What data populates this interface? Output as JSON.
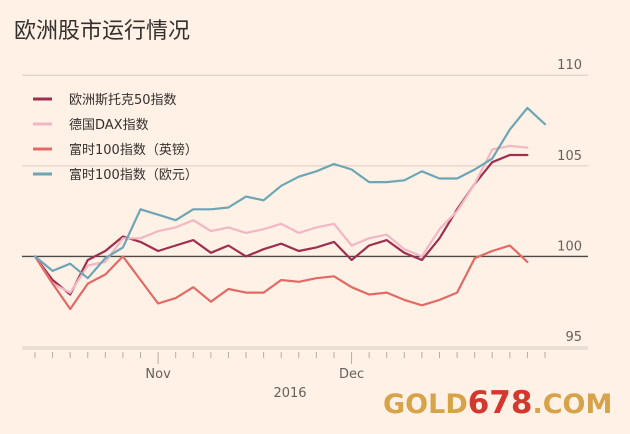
{
  "chart_data": {
    "type": "line",
    "title": "欧洲股市运行情况",
    "xlabel": "",
    "ylabel": "",
    "ylim": [
      95,
      111
    ],
    "yticks": [
      95,
      100,
      105,
      110
    ],
    "xticks": [
      {
        "label": "Nov",
        "x": 7
      },
      {
        "label": "Dec",
        "x": 18
      }
    ],
    "year_label": "2016",
    "grid": true,
    "legend_position": "top-left",
    "series": [
      {
        "name": "欧洲斯托克50指数",
        "color": "#9e2f50",
        "values": [
          100,
          98.7,
          97.9,
          99.8,
          100.3,
          101.1,
          100.8,
          100.3,
          100.6,
          100.9,
          100.2,
          100.6,
          100,
          100.4,
          100.7,
          100.3,
          100.5,
          100.8,
          99.8,
          100.6,
          100.9,
          100.2,
          99.8,
          101,
          102.6,
          104,
          105.2,
          105.6,
          105.6
        ]
      },
      {
        "name": "德国DAX指数",
        "color": "#f2b7c4",
        "values": [
          100,
          98.5,
          98,
          99.5,
          99.7,
          101,
          101,
          101.4,
          101.6,
          102,
          101.4,
          101.6,
          101.3,
          101.5,
          101.8,
          101.3,
          101.6,
          101.8,
          100.6,
          101,
          101.2,
          100.4,
          100,
          101.5,
          102.5,
          104,
          105.9,
          106.1,
          106
        ]
      },
      {
        "name": "富时100指数（英镑）",
        "color": "#e26a65",
        "values": [
          100,
          98.5,
          97.1,
          98.5,
          99,
          100,
          98.7,
          97.4,
          97.7,
          98.3,
          97.5,
          98.2,
          98,
          98,
          98.7,
          98.6,
          98.8,
          98.9,
          98.3,
          97.9,
          98,
          97.6,
          97.3,
          97.6,
          98,
          99.9,
          100.3,
          100.6,
          99.7
        ]
      },
      {
        "name": "富时100指数（欧元）",
        "color": "#6ea5b5",
        "values": [
          100,
          99.2,
          99.6,
          98.8,
          99.9,
          100.5,
          102.6,
          102.3,
          102,
          102.6,
          102.6,
          102.7,
          103.3,
          103.1,
          103.9,
          104.4,
          104.7,
          105.1,
          104.8,
          104.1,
          104.1,
          104.2,
          104.7,
          104.3,
          104.3,
          104.8,
          105.4,
          107,
          108.2,
          107.3
        ]
      }
    ]
  },
  "watermark": {
    "part1": "GOLD",
    "part2": "678",
    "part3": ".COM"
  }
}
